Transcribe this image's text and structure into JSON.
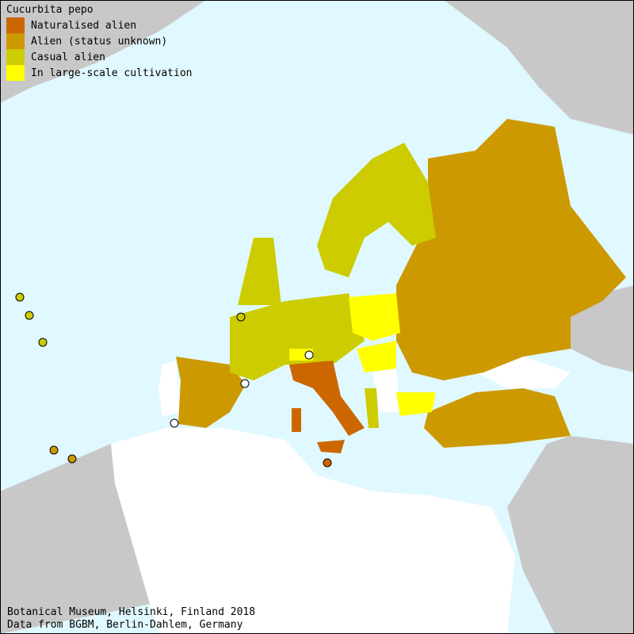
{
  "title": "Cucurbita pepo",
  "legend": [
    {
      "label": "Naturalised alien",
      "color": "#cc6600"
    },
    {
      "label": "Alien (status unknown)",
      "color": "#cc9900"
    },
    {
      "label": "Casual alien",
      "color": "#cccc00"
    },
    {
      "label": "In large-scale cultivation",
      "color": "#ffff00"
    }
  ],
  "colors": {
    "sea": "#e0f8ff",
    "outside_land": "#c8c8c8",
    "no_data": "#ffffff"
  },
  "footer": {
    "line1": "Botanical Museum, Helsinki, Finland 2018",
    "line2": "Data from BGBM, Berlin-Dahlem, Germany"
  }
}
